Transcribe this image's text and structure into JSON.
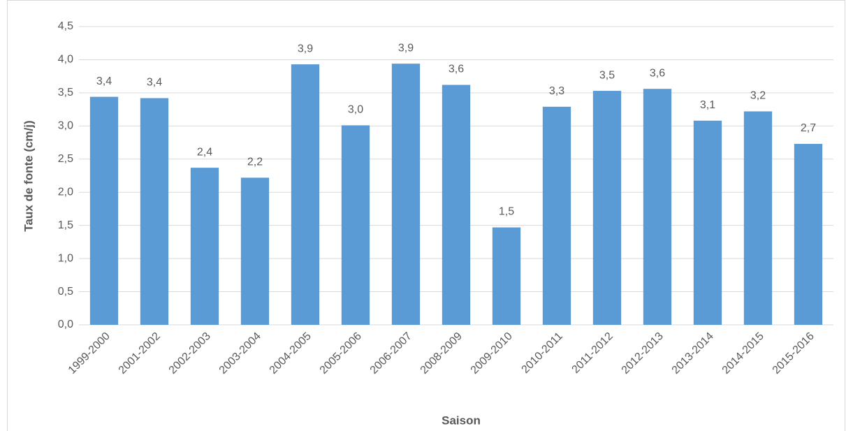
{
  "chart_data": {
    "type": "bar",
    "x_label": "Saison",
    "y_label": "Taux de fonte (cm/j)",
    "categories": [
      "1999-2000",
      "2001-2002",
      "2002-2003",
      "2003-2004",
      "2004-2005",
      "2005-2006",
      "2006-2007",
      "2008-2009",
      "2009-2010",
      "2010-2011",
      "2011-2012",
      "2012-2013",
      "2013-2014",
      "2014-2015",
      "2015-2016"
    ],
    "values": [
      3.44,
      3.42,
      2.37,
      2.22,
      3.93,
      3.01,
      3.94,
      3.62,
      1.47,
      3.29,
      3.53,
      3.56,
      3.08,
      3.22,
      2.73
    ],
    "value_labels": [
      "3,4",
      "3,4",
      "2,4",
      "2,2",
      "3,9",
      "3,0",
      "3,9",
      "3,6",
      "1,5",
      "3,3",
      "3,5",
      "3,6",
      "3,1",
      "3,2",
      "2,7"
    ],
    "color": "#5b9bd5",
    "ylim": [
      0,
      4.5
    ],
    "yticks": [
      {
        "value": 0,
        "label": "0,0"
      },
      {
        "value": 0.5,
        "label": "0,5"
      },
      {
        "value": 1,
        "label": "1,0"
      },
      {
        "value": 1.5,
        "label": "1,5"
      },
      {
        "value": 2,
        "label": "2,0"
      },
      {
        "value": 2.5,
        "label": "2,5"
      },
      {
        "value": 3,
        "label": "3,0"
      },
      {
        "value": 3.5,
        "label": "3,5"
      },
      {
        "value": 4,
        "label": "4,0"
      },
      {
        "value": 4.5,
        "label": "4,5"
      }
    ],
    "grid": true
  }
}
